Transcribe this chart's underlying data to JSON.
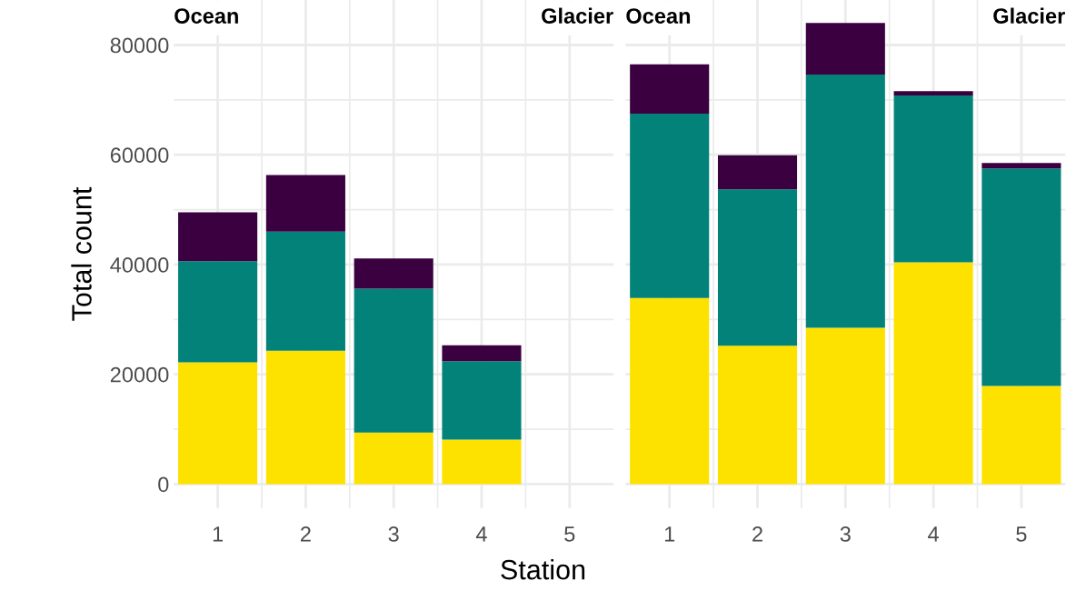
{
  "chart_data": [
    {
      "type": "bar",
      "stacked": true,
      "categories": [
        "1",
        "2",
        "3",
        "4",
        "5"
      ],
      "xlabel": "Station",
      "ylabel": "Total count",
      "ylim": [
        -4400,
        88200
      ],
      "yticks": [
        0,
        20000,
        40000,
        60000,
        80000
      ],
      "grid": true,
      "annotations": [
        "Ocean",
        "Glacier"
      ],
      "series": [
        {
          "color": "#fde200",
          "values": [
            22200,
            24300,
            9400,
            8100,
            null
          ]
        },
        {
          "color": "#03827a",
          "values": [
            18400,
            21700,
            26200,
            14300,
            null
          ]
        },
        {
          "color": "#3b0040",
          "values": [
            8900,
            10300,
            5500,
            2900,
            null
          ]
        }
      ]
    },
    {
      "type": "bar",
      "stacked": true,
      "categories": [
        "1",
        "2",
        "3",
        "4",
        "5"
      ],
      "ylim": [
        -4400,
        88200
      ],
      "yticks": [
        0,
        20000,
        40000,
        60000,
        80000
      ],
      "grid": true,
      "tick_labels": "x",
      "annotations": [
        "Ocean",
        "Glacier"
      ],
      "series": [
        {
          "color": "#fde200",
          "values": [
            33900,
            25200,
            28500,
            40400,
            17900
          ]
        },
        {
          "color": "#03827a",
          "values": [
            33600,
            28500,
            46100,
            30400,
            39600
          ]
        },
        {
          "color": "#3b0040",
          "values": [
            9000,
            6200,
            9400,
            800,
            1000
          ]
        }
      ]
    }
  ]
}
